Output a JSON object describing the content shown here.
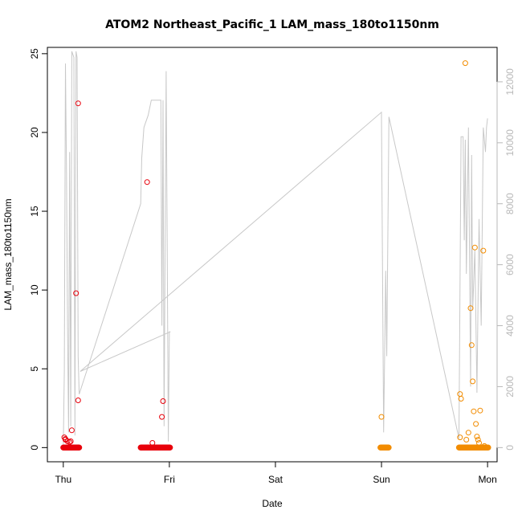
{
  "chart_data": {
    "type": "scatter",
    "title": "ATOM2 Northeast_Pacific_1 LAM_mass_180to1150nm",
    "xlabel": "Date",
    "ylabel": "LAM_mass_180to1150nm",
    "x_ticks": [
      "Thu",
      "Fri",
      "Sat",
      "Sun",
      "Mon"
    ],
    "x_tick_values": [
      0,
      1,
      2,
      3,
      4
    ],
    "xlim": [
      -0.15,
      4.09
    ],
    "ylim": [
      -0.9,
      25.4
    ],
    "y_ticks": [
      0,
      5,
      10,
      15,
      20,
      25
    ],
    "y2lim": [
      -465,
      13130
    ],
    "y2_ticks": [
      0,
      2000,
      4000,
      6000,
      8000,
      10000,
      12000
    ],
    "grid": false,
    "colors": {
      "red": "#e8000b",
      "orange": "#f28c00",
      "gray_line": "#c8c8c8",
      "gray_axis": "#b8b8b8"
    },
    "series": [
      {
        "color": "red",
        "x": [
          0.01,
          0.02,
          0.04,
          0.06,
          0.08,
          0.14,
          0.02,
          0.07,
          0.12,
          0.14,
          0.79,
          0.84,
          0.93,
          0.94
        ],
        "y": [
          0.65,
          0.5,
          0.4,
          0.35,
          1.1,
          21.85,
          0.55,
          0.4,
          9.8,
          3.0,
          16.85,
          0.3,
          1.95,
          2.95
        ]
      },
      {
        "color": "orange",
        "x": [
          3.0,
          3.74,
          3.75,
          3.79,
          3.84,
          3.85,
          3.86,
          3.87,
          3.88,
          3.89,
          3.9,
          3.91,
          3.93,
          3.96,
          3.92,
          3.74,
          3.8,
          3.82,
          3.97
        ],
        "y": [
          1.95,
          3.4,
          3.1,
          24.4,
          8.85,
          6.5,
          4.2,
          2.3,
          12.7,
          1.5,
          0.7,
          0.5,
          2.35,
          12.5,
          0.3,
          0.65,
          0.5,
          0.95,
          0.1
        ]
      },
      {
        "color": "red",
        "name_hidden": "zero-band",
        "band_ranges": [
          [
            0.0,
            0.15
          ],
          [
            0.73,
            1.01
          ]
        ],
        "y_value": 0
      },
      {
        "color": "orange",
        "name_hidden": "zero-band",
        "band_ranges": [
          [
            2.99,
            3.07
          ],
          [
            3.73,
            4.01
          ]
        ],
        "y_value": 0
      },
      {
        "color": "gray_line",
        "axis": "right",
        "x": [
          0.0,
          0.01,
          0.02,
          0.03,
          0.04,
          0.05,
          0.06,
          0.07,
          0.08,
          0.09,
          0.1,
          0.11,
          0.12,
          0.13,
          0.14,
          0.15,
          0.15,
          0.73,
          0.74,
          0.76,
          0.78,
          0.8,
          0.83,
          0.85,
          0.88,
          0.9,
          0.92,
          0.93,
          0.94,
          0.95,
          0.97,
          0.99,
          1.0,
          1.01,
          0.16,
          3.0,
          3.0,
          3.02,
          3.04,
          3.05,
          3.07,
          3.07,
          3.73,
          3.75,
          3.77,
          3.78,
          3.79,
          3.8,
          3.82,
          3.84,
          3.85,
          3.86,
          3.88,
          3.9,
          3.92,
          3.94,
          3.96,
          3.98,
          3.99,
          4.0,
          4.0
        ],
        "y": [
          0,
          2500,
          12600,
          9000,
          4000,
          500,
          9700,
          700,
          13000,
          12900,
          12800,
          400,
          13000,
          12800,
          3000,
          1750,
          1750,
          8000,
          9500,
          10500,
          10700,
          10900,
          11400,
          11400,
          11400,
          11400,
          11400,
          4000,
          11400,
          700,
          12350,
          200,
          3800,
          3800,
          2500,
          11000,
          10900,
          500,
          5800,
          3000,
          10850,
          10850,
          300,
          10200,
          10200,
          6800,
          10100,
          5700,
          10500,
          2000,
          9600,
          4500,
          6500,
          1800,
          7500,
          4000,
          10500,
          9700,
          10500,
          10800,
          10800
        ]
      }
    ]
  }
}
